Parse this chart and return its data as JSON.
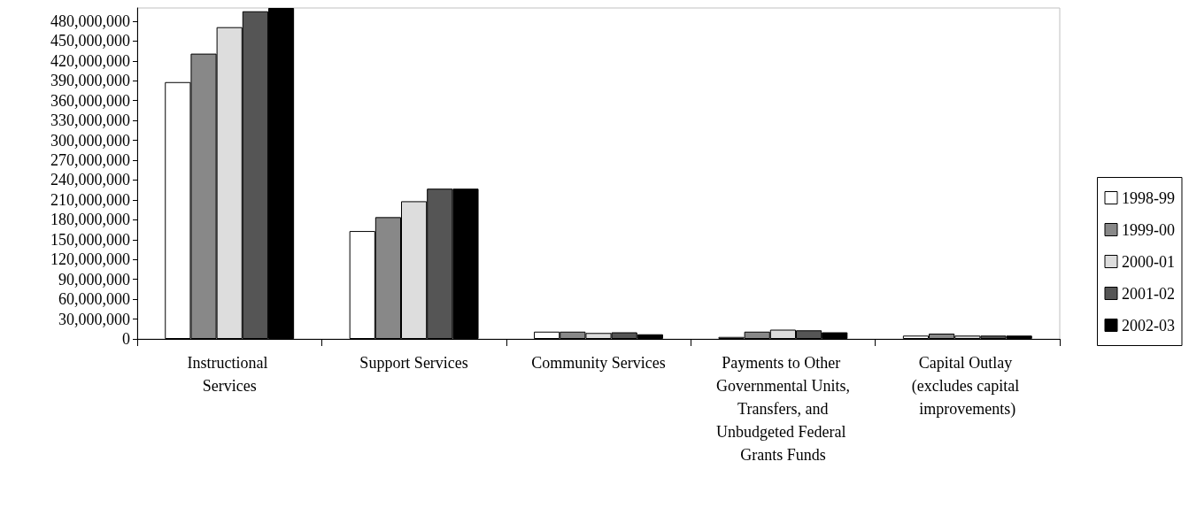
{
  "chart_data": {
    "type": "bar",
    "categories": [
      "Instructional Services",
      "Support Services",
      "Community Services",
      "Payments to Other Governmental Units, Transfers, and Unbudgeted Federal Grants Funds",
      "Capital Outlay (excludes capital improvements)"
    ],
    "series": [
      {
        "name": "1998-99",
        "color": "#ffffff",
        "values": [
          388000000,
          163000000,
          11000000,
          3000000,
          5000000
        ]
      },
      {
        "name": "1999-00",
        "color": "#888888",
        "values": [
          431000000,
          184000000,
          11000000,
          11000000,
          8000000
        ]
      },
      {
        "name": "2000-01",
        "color": "#dddddd",
        "values": [
          471000000,
          208000000,
          9000000,
          14000000,
          5000000
        ]
      },
      {
        "name": "2001-02",
        "color": "#555555",
        "values": [
          495000000,
          227000000,
          10000000,
          13000000,
          5000000
        ]
      },
      {
        "name": "2002-03",
        "color": "#000000",
        "values": [
          500000000,
          227000000,
          7000000,
          10000000,
          5000000
        ]
      }
    ],
    "ylim": [
      0,
      500000000
    ],
    "yticks": [
      0,
      {
        "value": 30000000,
        "label": "30,000,000"
      },
      {
        "value": 60000000,
        "label": "60,000,000"
      },
      {
        "value": 90000000,
        "label": "90,000,000"
      },
      {
        "value": 120000000,
        "label": "120,000,000"
      },
      {
        "value": 150000000,
        "label": "150,000,000"
      },
      {
        "value": 180000000,
        "label": "180,000,000"
      },
      {
        "value": 210000000,
        "label": "210,000,000"
      },
      {
        "value": 240000000,
        "label": "240,000,000"
      },
      {
        "value": 270000000,
        "label": "270,000,000"
      },
      {
        "value": 300000000,
        "label": "300,000,000"
      },
      {
        "value": 330000000,
        "label": "330,000,000"
      },
      {
        "value": 360000000,
        "label": "360,000,000"
      },
      {
        "value": 390000000,
        "label": "390,000,000"
      },
      {
        "value": 420000000,
        "label": "420,000,000"
      },
      {
        "value": 450000000,
        "label": "450,000,000"
      },
      {
        "value": 480000000,
        "label": "480,000,000"
      }
    ],
    "grid": false,
    "legend": "right"
  }
}
